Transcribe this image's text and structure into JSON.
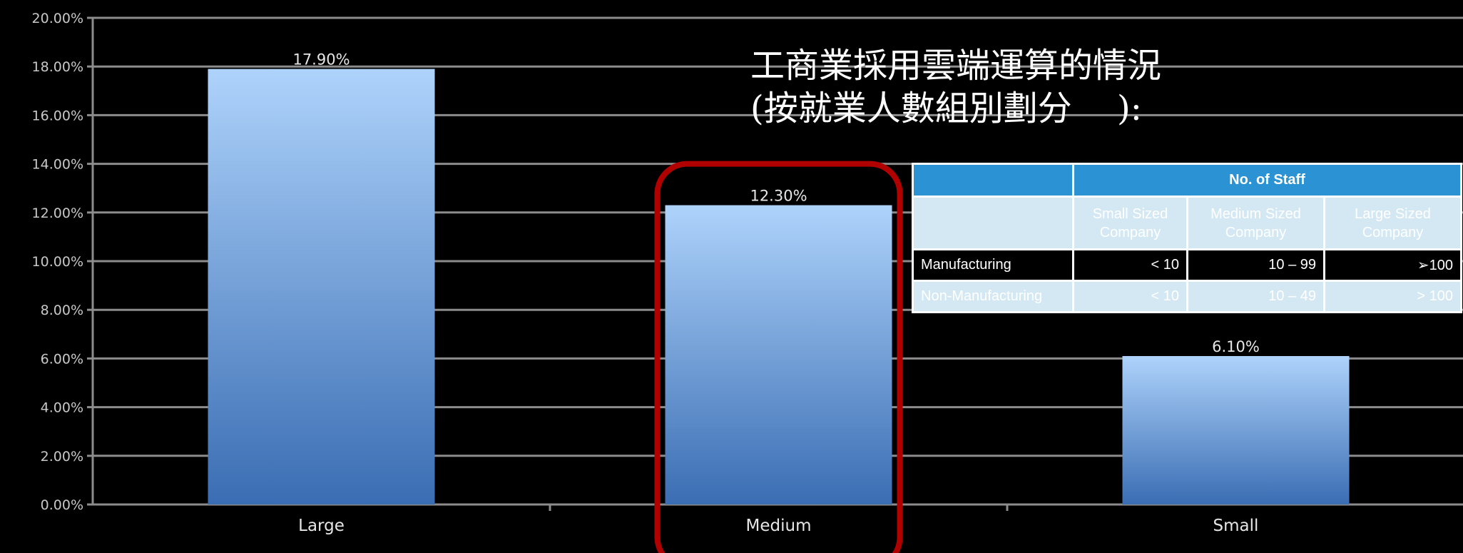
{
  "chart_data": {
    "type": "bar",
    "categories": [
      "Large",
      "Medium",
      "Small"
    ],
    "values": [
      17.9,
      12.3,
      6.1
    ],
    "data_labels": [
      "17.90%",
      "12.30%",
      "6.10%"
    ],
    "y_ticks": [
      "0.00%",
      "2.00%",
      "4.00%",
      "6.00%",
      "8.00%",
      "10.00%",
      "12.00%",
      "14.00%",
      "16.00%",
      "18.00%",
      "20.00%"
    ],
    "ylim": [
      0,
      20
    ],
    "grid": true,
    "highlighted_category": "Medium",
    "colors": {
      "bar_top": "#aed3fb",
      "bar_bottom": "#3a6db3",
      "highlight": "#b00000",
      "grid": "#8c8c8c",
      "background": "#000000"
    }
  },
  "headline": {
    "line1": "工商業採用雲端運算的情況",
    "line2": "(按就業人數組別劃分　 ):"
  },
  "staff_table": {
    "header": "No. of  Staff",
    "columns": [
      "Small Sized Company",
      "Medium Sized Company",
      "Large Sized Company"
    ],
    "rows": [
      {
        "label": "Manufacturing",
        "values": [
          "< 10",
          "10 – 99",
          "➢100"
        ]
      },
      {
        "label": "Non-Manufacturing",
        "values": [
          "< 10",
          "10 – 49",
          "> 100"
        ]
      }
    ]
  }
}
